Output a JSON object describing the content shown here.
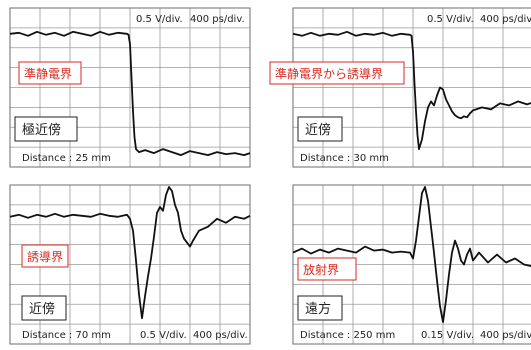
{
  "colors": {
    "grid": "#9a9a9a",
    "frame": "#6e6e6e",
    "trace": "#111111",
    "red_box": "#d9281f",
    "black_box": "#222222"
  },
  "chart_data": [
    {
      "type": "line",
      "id": "top-left",
      "scale_text": "0.5 V/div.",
      "time_text": "400 ps/div.",
      "field_label": "準静電界",
      "distance_label": "極近傍",
      "distance_text": "Distance : 25 mm",
      "grid": true,
      "xlim": [
        0,
        8
      ],
      "ylim": [
        0,
        8
      ],
      "series": [
        {
          "x": [
            0,
            0.3,
            0.6,
            0.9,
            1.2,
            1.5,
            1.8,
            2.1,
            2.4,
            2.7,
            3.0,
            3.3,
            3.6,
            3.9,
            3.95,
            4.0,
            4.05,
            4.1,
            4.15,
            4.2,
            4.3,
            4.5,
            4.8,
            5.1,
            5.4,
            5.7,
            6.0,
            6.3,
            6.6,
            6.9,
            7.2,
            7.5,
            7.8,
            8.0
          ],
          "y": [
            6.7,
            6.75,
            6.6,
            6.8,
            6.65,
            6.75,
            6.6,
            6.8,
            6.7,
            6.6,
            6.8,
            6.65,
            6.75,
            6.7,
            6.65,
            6.2,
            4.5,
            2.8,
            1.5,
            0.9,
            0.75,
            0.85,
            0.7,
            0.9,
            0.75,
            0.6,
            0.8,
            0.7,
            0.6,
            0.75,
            0.65,
            0.7,
            0.6,
            0.7
          ]
        }
      ]
    },
    {
      "type": "line",
      "id": "top-right",
      "scale_text": "0.5 V/div.",
      "time_text": "400 ps/div.",
      "field_label": "準静電界から誘導界",
      "distance_label": "近傍",
      "distance_text": "Distance : 30 mm",
      "grid": true,
      "xlim": [
        0,
        8
      ],
      "ylim": [
        0,
        8
      ],
      "series": [
        {
          "x": [
            0,
            0.3,
            0.6,
            0.9,
            1.2,
            1.5,
            1.8,
            2.1,
            2.4,
            2.7,
            3.0,
            3.3,
            3.6,
            3.9,
            3.95,
            4.0,
            4.05,
            4.1,
            4.15,
            4.2,
            4.3,
            4.4,
            4.5,
            4.6,
            4.7,
            4.8,
            4.9,
            5.0,
            5.1,
            5.2,
            5.3,
            5.4,
            5.5,
            5.6,
            5.7,
            5.8,
            5.9,
            6.0,
            6.3,
            6.6,
            6.9,
            7.2,
            7.5,
            7.8,
            8.0
          ],
          "y": [
            6.7,
            6.6,
            6.75,
            6.6,
            6.7,
            6.65,
            6.8,
            6.6,
            6.7,
            6.65,
            6.75,
            6.6,
            6.7,
            6.65,
            6.6,
            5.8,
            4.2,
            2.8,
            1.6,
            0.9,
            1.4,
            2.3,
            3.0,
            3.3,
            3.1,
            3.6,
            4.0,
            3.9,
            3.4,
            3.1,
            2.8,
            2.6,
            2.5,
            2.45,
            2.55,
            2.5,
            2.7,
            2.85,
            3.0,
            2.9,
            3.2,
            3.1,
            3.3,
            3.15,
            3.25
          ]
        }
      ]
    },
    {
      "type": "line",
      "id": "bottom-left",
      "scale_text": "0.5 V/div.",
      "time_text": "400 ps/div.",
      "field_label": "誘導界",
      "distance_label": "近傍",
      "distance_text": "Distance : 70 mm",
      "grid": true,
      "xlim": [
        0,
        8
      ],
      "ylim": [
        0,
        8
      ],
      "series": [
        {
          "x": [
            0,
            0.3,
            0.6,
            0.9,
            1.2,
            1.5,
            1.8,
            2.1,
            2.4,
            2.7,
            3.0,
            3.3,
            3.6,
            3.9,
            4.0,
            4.1,
            4.2,
            4.3,
            4.4,
            4.5,
            4.6,
            4.7,
            4.8,
            4.9,
            5.0,
            5.1,
            5.2,
            5.3,
            5.4,
            5.5,
            5.6,
            5.7,
            5.8,
            5.9,
            6.0,
            6.1,
            6.3,
            6.6,
            6.9,
            7.2,
            7.5,
            7.8,
            8.0
          ],
          "y": [
            6.4,
            6.5,
            6.35,
            6.5,
            6.4,
            6.55,
            6.4,
            6.5,
            6.45,
            6.4,
            6.55,
            6.45,
            6.4,
            6.5,
            6.3,
            5.7,
            4.2,
            2.5,
            1.3,
            2.4,
            3.4,
            4.3,
            5.4,
            6.6,
            6.9,
            6.7,
            7.5,
            7.9,
            7.7,
            7.0,
            6.6,
            5.7,
            5.3,
            5.1,
            4.9,
            5.2,
            5.7,
            5.9,
            6.3,
            6.1,
            6.4,
            6.3,
            6.45
          ]
        }
      ]
    },
    {
      "type": "line",
      "id": "bottom-right",
      "scale_text": "0.15 V/div.",
      "time_text": "400 ps/div.",
      "field_label": "放射界",
      "distance_label": "遠方",
      "distance_text": "Distance : 250 mm",
      "grid": true,
      "xlim": [
        0,
        8
      ],
      "ylim": [
        0,
        8
      ],
      "series": [
        {
          "x": [
            0,
            0.3,
            0.6,
            0.9,
            1.2,
            1.5,
            1.8,
            2.1,
            2.4,
            2.7,
            3.0,
            3.3,
            3.6,
            3.9,
            4.0,
            4.1,
            4.2,
            4.3,
            4.4,
            4.5,
            4.6,
            4.7,
            4.8,
            4.9,
            5.0,
            5.1,
            5.2,
            5.3,
            5.4,
            5.5,
            5.6,
            5.7,
            5.8,
            5.9,
            6.0,
            6.2,
            6.5,
            6.8,
            7.1,
            7.4,
            7.7,
            8.0
          ],
          "y": [
            4.6,
            4.8,
            4.55,
            4.75,
            4.6,
            4.8,
            4.7,
            4.6,
            4.9,
            4.7,
            4.75,
            4.6,
            4.65,
            4.6,
            4.3,
            5.2,
            6.4,
            7.6,
            7.9,
            7.2,
            5.9,
            4.6,
            3.2,
            1.9,
            1.1,
            2.2,
            3.5,
            4.6,
            5.2,
            4.8,
            4.2,
            4.0,
            4.5,
            4.8,
            4.2,
            4.6,
            4.1,
            4.5,
            4.1,
            4.3,
            4.0,
            3.9
          ]
        }
      ]
    }
  ]
}
